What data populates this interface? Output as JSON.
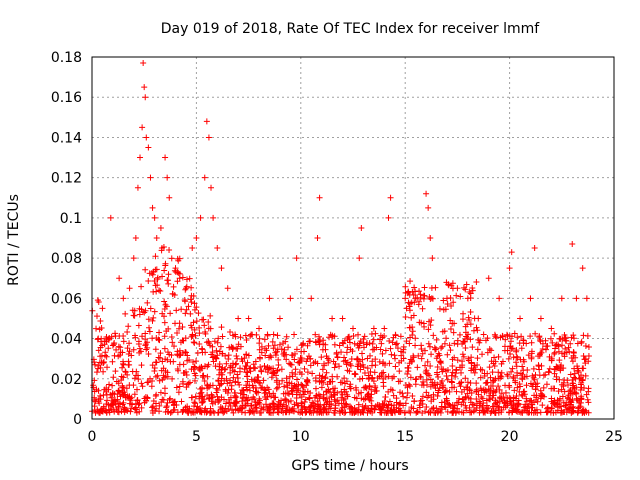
{
  "chart_data": {
    "type": "scatter",
    "title": "Day 019 of 2018, Rate Of TEC Index for receiver lmmf",
    "xlabel": "GPS time / hours",
    "ylabel": "ROTI / TECUs",
    "xlim": [
      0,
      25
    ],
    "ylim": [
      0,
      0.18
    ],
    "x_ticks": [
      "0",
      "5",
      "10",
      "15",
      "20",
      "25"
    ],
    "y_ticks": [
      "0",
      "0.02",
      "0.04",
      "0.06",
      "0.08",
      "0.1",
      "0.12",
      "0.14",
      "0.16",
      "0.18"
    ],
    "grid": true,
    "marker": "+",
    "series": [
      {
        "color": "#ff0000",
        "x_range": [
          0,
          23.8
        ],
        "points": [
          [
            0.3,
            0.04
          ],
          [
            0.5,
            0.055
          ],
          [
            0.9,
            0.1
          ],
          [
            1.3,
            0.07
          ],
          [
            1.5,
            0.06
          ],
          [
            1.8,
            0.065
          ],
          [
            2.0,
            0.08
          ],
          [
            2.1,
            0.09
          ],
          [
            2.2,
            0.115
          ],
          [
            2.3,
            0.13
          ],
          [
            2.4,
            0.145
          ],
          [
            2.45,
            0.177
          ],
          [
            2.5,
            0.165
          ],
          [
            2.55,
            0.16
          ],
          [
            2.6,
            0.14
          ],
          [
            2.7,
            0.135
          ],
          [
            2.8,
            0.12
          ],
          [
            2.9,
            0.105
          ],
          [
            3.0,
            0.1
          ],
          [
            3.1,
            0.09
          ],
          [
            3.3,
            0.095
          ],
          [
            3.5,
            0.13
          ],
          [
            3.6,
            0.12
          ],
          [
            3.7,
            0.11
          ],
          [
            4.0,
            0.075
          ],
          [
            4.2,
            0.07
          ],
          [
            4.5,
            0.065
          ],
          [
            4.8,
            0.085
          ],
          [
            5.0,
            0.09
          ],
          [
            5.2,
            0.1
          ],
          [
            5.4,
            0.12
          ],
          [
            5.5,
            0.148
          ],
          [
            5.6,
            0.14
          ],
          [
            5.7,
            0.115
          ],
          [
            5.8,
            0.1
          ],
          [
            6.0,
            0.085
          ],
          [
            6.2,
            0.075
          ],
          [
            6.5,
            0.065
          ],
          [
            7.0,
            0.05
          ],
          [
            7.5,
            0.05
          ],
          [
            8.0,
            0.045
          ],
          [
            8.5,
            0.06
          ],
          [
            9.0,
            0.05
          ],
          [
            9.5,
            0.06
          ],
          [
            9.8,
            0.08
          ],
          [
            10.5,
            0.06
          ],
          [
            10.8,
            0.09
          ],
          [
            10.9,
            0.11
          ],
          [
            11.5,
            0.05
          ],
          [
            12.0,
            0.05
          ],
          [
            12.5,
            0.045
          ],
          [
            12.8,
            0.08
          ],
          [
            12.9,
            0.095
          ],
          [
            13.5,
            0.045
          ],
          [
            14.0,
            0.045
          ],
          [
            14.2,
            0.1
          ],
          [
            14.3,
            0.11
          ],
          [
            15.0,
            0.06
          ],
          [
            15.5,
            0.06
          ],
          [
            16.0,
            0.112
          ],
          [
            16.1,
            0.105
          ],
          [
            16.2,
            0.09
          ],
          [
            16.3,
            0.08
          ],
          [
            17.0,
            0.06
          ],
          [
            17.5,
            0.065
          ],
          [
            18.0,
            0.06
          ],
          [
            18.5,
            0.05
          ],
          [
            19.0,
            0.07
          ],
          [
            19.5,
            0.06
          ],
          [
            20.0,
            0.075
          ],
          [
            20.1,
            0.083
          ],
          [
            20.5,
            0.05
          ],
          [
            21.0,
            0.06
          ],
          [
            21.2,
            0.085
          ],
          [
            21.5,
            0.05
          ],
          [
            22.0,
            0.045
          ],
          [
            22.5,
            0.06
          ],
          [
            23.0,
            0.087
          ],
          [
            23.2,
            0.06
          ],
          [
            23.5,
            0.075
          ],
          [
            23.7,
            0.06
          ]
        ]
      }
    ]
  }
}
